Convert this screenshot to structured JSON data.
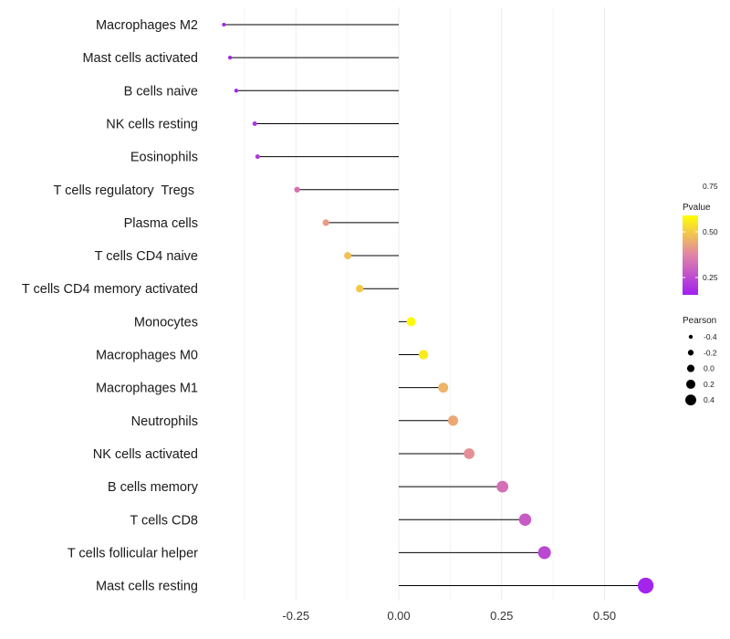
{
  "chart_data": {
    "type": "lollipop",
    "title": "",
    "xlabel": "",
    "ylabel": "",
    "xlim": [
      -0.425,
      0.62
    ],
    "xticks": [
      {
        "value": -0.25,
        "label": "-0.25"
      },
      {
        "value": 0.0,
        "label": "0.00"
      },
      {
        "value": 0.25,
        "label": "0.25"
      },
      {
        "value": 0.5,
        "label": "0.50"
      }
    ],
    "minor_gridlines": [
      -0.375,
      -0.125,
      0.125,
      0.375
    ],
    "categories": [
      "Macrophages M2",
      "Mast cells activated",
      "B cells naive",
      "NK cells resting",
      "Eosinophils",
      "T cells regulatory  Tregs ",
      "Plasma cells",
      "T cells CD4 naive",
      "T cells CD4 memory activated",
      "Monocytes",
      "Macrophages M0",
      "Macrophages M1",
      "Neutrophils",
      "NK cells activated",
      "B cells memory",
      "T cells CD8",
      "T cells follicular helper",
      "Mast cells resting"
    ],
    "pearson": [
      -0.425,
      -0.41,
      -0.395,
      -0.35,
      -0.343,
      -0.247,
      -0.177,
      -0.124,
      -0.095,
      0.03,
      0.06,
      0.108,
      0.132,
      0.171,
      0.252,
      0.307,
      0.354,
      0.6
    ],
    "pvalue": [
      0.01,
      0.02,
      0.03,
      0.1,
      0.12,
      0.4,
      0.6,
      0.75,
      0.78,
      0.98,
      0.92,
      0.7,
      0.65,
      0.55,
      0.4,
      0.3,
      0.2,
      0.02
    ],
    "color_legend": {
      "title": "Pvalue",
      "breaks": [
        {
          "value": 0.75,
          "label": "0.75"
        },
        {
          "value": 0.5,
          "label": "0.50"
        },
        {
          "value": 0.25,
          "label": "0.25"
        }
      ],
      "low_color": "#a020f0",
      "mid_color": "#e183a8",
      "high_color": "#ffff00"
    },
    "size_legend": {
      "title": "Pearson",
      "breaks": [
        {
          "value": -0.4,
          "label": "-0.4"
        },
        {
          "value": -0.2,
          "label": "-0.2"
        },
        {
          "value": 0.0,
          "label": "0.0"
        },
        {
          "value": 0.2,
          "label": "0.2"
        },
        {
          "value": 0.4,
          "label": "0.4"
        }
      ]
    },
    "stem_color": "#000000",
    "grid_color": "#ebebeb"
  }
}
